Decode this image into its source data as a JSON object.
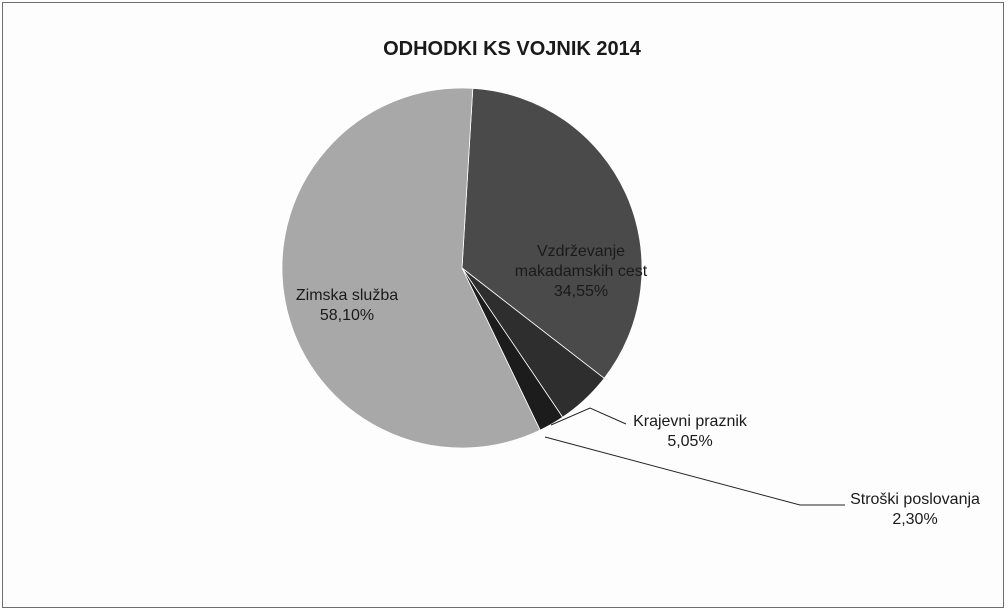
{
  "chart_data": {
    "type": "pie",
    "title": "ODHODKI KS VOJNIK 2014",
    "slices": [
      {
        "name_lines": [
          "Vzdrževanje",
          "makadamskih cest"
        ],
        "value": 34.55,
        "label": "34,55%",
        "color": "#4a4a4a"
      },
      {
        "name_lines": [
          "Krajevni praznik"
        ],
        "value": 5.05,
        "label": "5,05%",
        "color": "#2e2e2e"
      },
      {
        "name_lines": [
          "Stroški poslovanja"
        ],
        "value": 2.3,
        "label": "2,30%",
        "color": "#1c1c1c"
      },
      {
        "name_lines": [
          "Zimska služba"
        ],
        "value": 58.1,
        "label": "58,10%",
        "color": "#a8a8a8"
      }
    ],
    "legend": "none"
  }
}
